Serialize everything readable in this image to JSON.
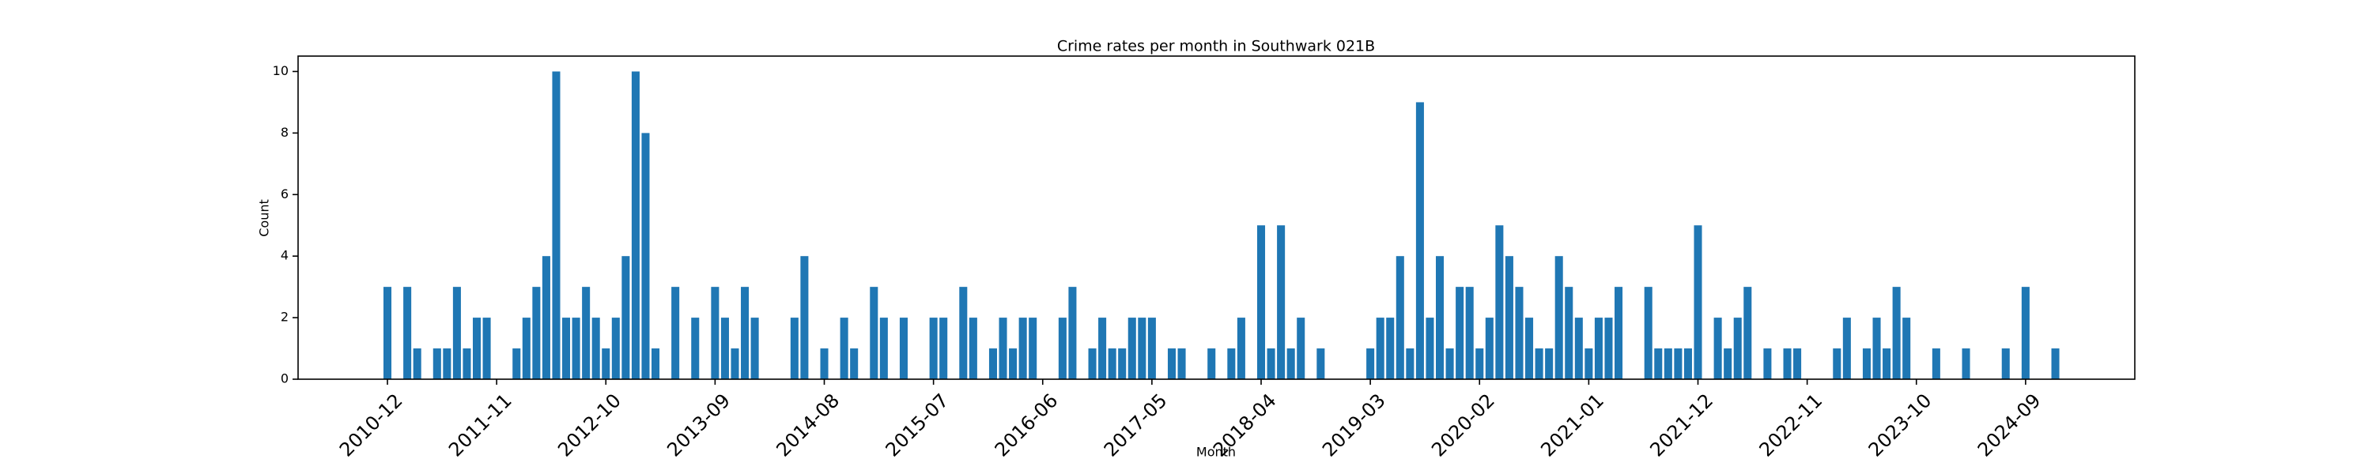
{
  "chart_data": {
    "type": "bar",
    "title": "Crime rates per month in Southwark 021B",
    "x_label": "Month",
    "y_label": "Count",
    "color": "#1f77b4",
    "grid": false,
    "x": [
      "2010-12",
      "2011-02",
      "2011-03",
      "2011-05",
      "2011-06",
      "2011-07",
      "2011-08",
      "2011-09",
      "2011-10",
      "2012-01",
      "2012-02",
      "2012-03",
      "2012-04",
      "2012-05",
      "2012-06",
      "2012-07",
      "2012-08",
      "2012-09",
      "2012-10",
      "2012-11",
      "2012-12",
      "2013-01",
      "2013-02",
      "2013-03",
      "2013-05",
      "2013-07",
      "2013-09",
      "2013-10",
      "2013-11",
      "2013-12",
      "2014-01",
      "2014-05",
      "2014-06",
      "2014-08",
      "2014-10",
      "2014-11",
      "2015-01",
      "2015-02",
      "2015-04",
      "2015-07",
      "2015-08",
      "2015-10",
      "2015-11",
      "2016-01",
      "2016-02",
      "2016-03",
      "2016-04",
      "2016-05",
      "2016-08",
      "2016-09",
      "2016-11",
      "2016-12",
      "2017-01",
      "2017-02",
      "2017-03",
      "2017-04",
      "2017-05",
      "2017-07",
      "2017-08",
      "2017-11",
      "2018-01",
      "2018-02",
      "2018-04",
      "2018-05",
      "2018-06",
      "2018-07",
      "2018-08",
      "2018-10",
      "2019-03",
      "2019-04",
      "2019-05",
      "2019-06",
      "2019-07",
      "2019-08",
      "2019-09",
      "2019-10",
      "2019-11",
      "2019-12",
      "2020-01",
      "2020-02",
      "2020-03",
      "2020-04",
      "2020-05",
      "2020-06",
      "2020-07",
      "2020-08",
      "2020-09",
      "2020-10",
      "2020-11",
      "2020-12",
      "2021-01",
      "2021-02",
      "2021-03",
      "2021-04",
      "2021-07",
      "2021-08",
      "2021-09",
      "2021-10",
      "2021-11",
      "2021-12",
      "2022-02",
      "2022-03",
      "2022-04",
      "2022-05",
      "2022-07",
      "2022-09",
      "2022-10",
      "2023-02",
      "2023-03",
      "2023-05",
      "2023-06",
      "2023-07",
      "2023-08",
      "2023-09",
      "2023-12",
      "2024-03",
      "2024-07",
      "2024-09",
      "2024-12"
    ],
    "values": [
      3,
      3,
      1,
      1,
      1,
      3,
      1,
      2,
      2,
      1,
      2,
      3,
      4,
      10,
      2,
      2,
      3,
      2,
      1,
      2,
      4,
      10,
      8,
      1,
      3,
      2,
      3,
      2,
      1,
      3,
      2,
      2,
      4,
      1,
      2,
      1,
      3,
      2,
      2,
      2,
      2,
      3,
      2,
      1,
      2,
      1,
      2,
      2,
      2,
      3,
      1,
      2,
      1,
      1,
      2,
      2,
      2,
      1,
      1,
      1,
      1,
      2,
      5,
      1,
      5,
      1,
      2,
      1,
      1,
      2,
      2,
      4,
      1,
      9,
      2,
      4,
      1,
      3,
      3,
      1,
      2,
      5,
      4,
      3,
      2,
      1,
      1,
      4,
      3,
      2,
      1,
      2,
      2,
      3,
      3,
      1,
      1,
      1,
      1,
      5,
      2,
      1,
      2,
      3,
      1,
      1,
      1,
      1,
      2,
      1,
      2,
      1,
      3,
      2,
      1,
      1,
      1,
      3,
      1
    ],
    "xlim": [
      "2010-03",
      "2025-08"
    ],
    "xticks": [
      "2010-12",
      "2011-11",
      "2012-10",
      "2013-09",
      "2014-08",
      "2015-07",
      "2016-06",
      "2017-05",
      "2018-04",
      "2019-03",
      "2020-02",
      "2021-01",
      "2021-12",
      "2022-11",
      "2023-10",
      "2024-09"
    ],
    "ylim": [
      0,
      10.5
    ],
    "yticks": [
      0,
      2,
      4,
      6,
      8,
      10
    ]
  }
}
